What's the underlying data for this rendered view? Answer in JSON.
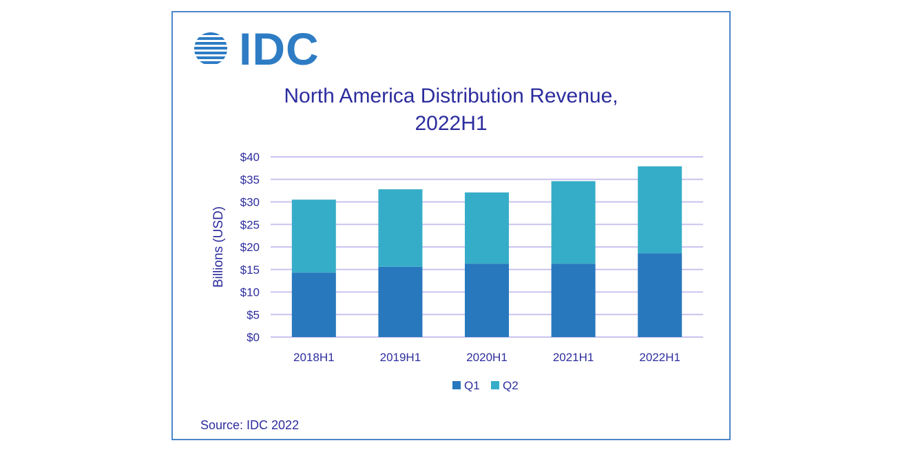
{
  "brand": {
    "logo_text": "IDC",
    "color": "#2e7cc4"
  },
  "source_text": "Source: IDC 2022",
  "chart_data": {
    "type": "bar",
    "stacked": true,
    "title": [
      "North America Distribution Revenue,",
      "2022H1"
    ],
    "xlabel": "",
    "ylabel": "Billions (USD)",
    "categories": [
      "2018H1",
      "2019H1",
      "2020H1",
      "2021H1",
      "2022H1"
    ],
    "series": [
      {
        "name": "Q1",
        "color": "#2878bd",
        "values": [
          14.3,
          15.6,
          16.3,
          16.3,
          18.6
        ]
      },
      {
        "name": "Q2",
        "color": "#36adc8",
        "values": [
          16.2,
          17.2,
          15.8,
          18.3,
          19.3
        ]
      }
    ],
    "ylim": [
      0,
      40
    ],
    "yticks": [
      0,
      5,
      10,
      15,
      20,
      25,
      30,
      35,
      40
    ],
    "ytick_labels": [
      "$0",
      "$5",
      "$10",
      "$15",
      "$20",
      "$25",
      "$30",
      "$35",
      "$40"
    ],
    "grid": true,
    "gridline_color": "#c9c3ee",
    "legend_position": "bottom"
  }
}
